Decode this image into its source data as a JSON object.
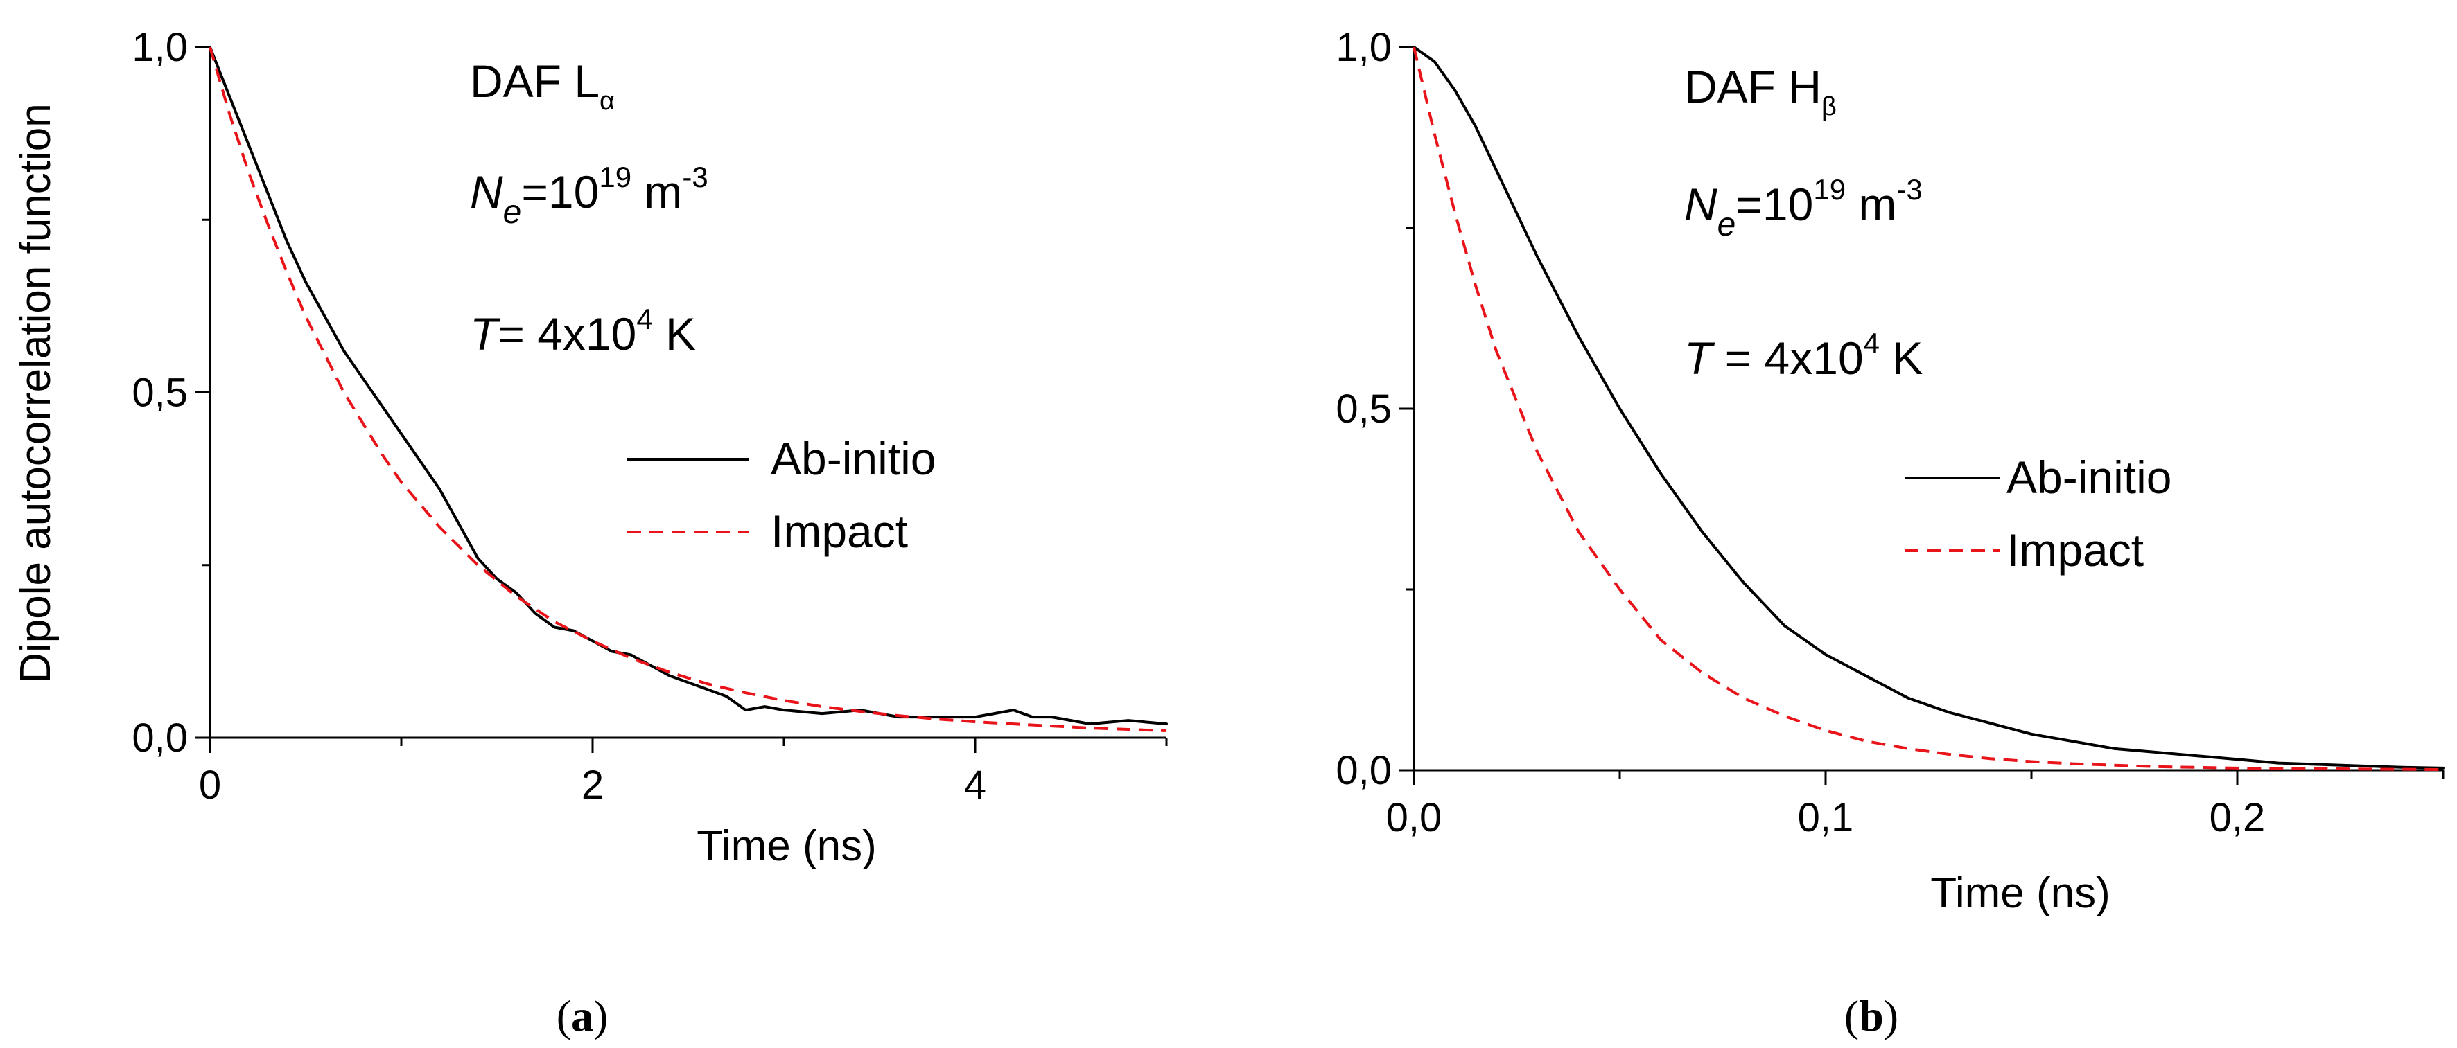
{
  "chart_data": [
    {
      "type": "line",
      "panel": "a",
      "caption_letter": "a",
      "ylabel": "Dipole autocorrelation function",
      "xlabel": "Time (ns)",
      "xlim": [
        0,
        5
      ],
      "ylim": [
        0,
        1
      ],
      "x_ticks": [
        {
          "value": 0,
          "label": "0"
        },
        {
          "value": 2,
          "label": "2"
        },
        {
          "value": 4,
          "label": "4"
        }
      ],
      "x_minor_ticks": [
        1,
        3,
        5
      ],
      "y_ticks": [
        {
          "value": 0,
          "label": "0,0"
        },
        {
          "value": 0.5,
          "label": "0,5"
        },
        {
          "value": 1,
          "label": "1,0"
        }
      ],
      "y_minor_ticks": [
        0.25,
        0.75
      ],
      "annotations": {
        "title_main": "DAF L",
        "title_sub": "α",
        "density_var": "N",
        "density_sub": "e",
        "density_eq": "=10",
        "density_exp": "19",
        "density_unit": " m",
        "density_unit_exp": "-3",
        "temp_var": "T",
        "temp_eq": "= 4x10",
        "temp_exp": "4",
        "temp_unit": " K"
      },
      "legend_position": "center-right",
      "series": [
        {
          "name": "Ab-initio",
          "color": "#000000",
          "style": "solid",
          "x": [
            0,
            0.1,
            0.2,
            0.3,
            0.4,
            0.5,
            0.6,
            0.7,
            0.8,
            0.9,
            1.0,
            1.1,
            1.2,
            1.3,
            1.4,
            1.5,
            1.6,
            1.7,
            1.8,
            1.9,
            2.0,
            2.1,
            2.2,
            2.3,
            2.4,
            2.5,
            2.6,
            2.7,
            2.8,
            2.9,
            3.0,
            3.2,
            3.4,
            3.6,
            3.8,
            4.0,
            4.2,
            4.3,
            4.4,
            4.6,
            4.8,
            5.0
          ],
          "y": [
            1.0,
            0.93,
            0.86,
            0.79,
            0.72,
            0.66,
            0.61,
            0.56,
            0.52,
            0.48,
            0.44,
            0.4,
            0.36,
            0.31,
            0.26,
            0.23,
            0.21,
            0.18,
            0.16,
            0.155,
            0.14,
            0.125,
            0.12,
            0.105,
            0.09,
            0.08,
            0.07,
            0.06,
            0.04,
            0.045,
            0.04,
            0.035,
            0.04,
            0.03,
            0.03,
            0.03,
            0.04,
            0.03,
            0.03,
            0.02,
            0.025,
            0.02
          ]
        },
        {
          "name": "Impact",
          "color": "#e8141a",
          "style": "dashed",
          "x": [
            0,
            0.1,
            0.2,
            0.3,
            0.4,
            0.5,
            0.6,
            0.7,
            0.8,
            0.9,
            1.0,
            1.2,
            1.4,
            1.6,
            1.8,
            2.0,
            2.2,
            2.4,
            2.6,
            2.8,
            3.0,
            3.2,
            3.4,
            3.6,
            3.8,
            4.0,
            4.2,
            4.4,
            4.6,
            4.8,
            5.0
          ],
          "y": [
            1.0,
            0.905,
            0.82,
            0.745,
            0.675,
            0.61,
            0.555,
            0.5,
            0.455,
            0.41,
            0.37,
            0.305,
            0.25,
            0.205,
            0.168,
            0.14,
            0.115,
            0.095,
            0.078,
            0.065,
            0.054,
            0.045,
            0.038,
            0.032,
            0.027,
            0.023,
            0.02,
            0.017,
            0.014,
            0.012,
            0.01
          ]
        }
      ]
    },
    {
      "type": "line",
      "panel": "b",
      "caption_letter": "b",
      "ylabel": "",
      "xlabel": "Time (ns)",
      "xlim": [
        0,
        0.25
      ],
      "ylim": [
        0,
        1
      ],
      "x_ticks": [
        {
          "value": 0,
          "label": "0,0"
        },
        {
          "value": 0.1,
          "label": "0,1"
        },
        {
          "value": 0.2,
          "label": "0,2"
        }
      ],
      "x_minor_ticks": [
        0.05,
        0.15,
        0.25
      ],
      "y_ticks": [
        {
          "value": 0,
          "label": "0,0"
        },
        {
          "value": 0.5,
          "label": "0,5"
        },
        {
          "value": 1,
          "label": "1,0"
        }
      ],
      "y_minor_ticks": [
        0.25,
        0.75
      ],
      "annotations": {
        "title_main": "DAF H",
        "title_sub": "β",
        "density_var": "N",
        "density_sub": "e",
        "density_eq": "=10",
        "density_exp": "19",
        "density_unit": " m",
        "density_unit_exp": "-3",
        "temp_var": "T",
        "temp_eq": " = 4x10",
        "temp_exp": "4",
        "temp_unit": " K"
      },
      "legend_position": "center-right",
      "series": [
        {
          "name": "Ab-initio",
          "color": "#000000",
          "style": "solid",
          "x": [
            0,
            0.005,
            0.01,
            0.015,
            0.02,
            0.03,
            0.04,
            0.05,
            0.06,
            0.07,
            0.08,
            0.09,
            0.1,
            0.11,
            0.12,
            0.13,
            0.14,
            0.15,
            0.16,
            0.17,
            0.18,
            0.19,
            0.2,
            0.21,
            0.22,
            0.23,
            0.24,
            0.25
          ],
          "y": [
            1.0,
            0.98,
            0.94,
            0.89,
            0.83,
            0.71,
            0.6,
            0.5,
            0.41,
            0.33,
            0.26,
            0.2,
            0.16,
            0.13,
            0.1,
            0.08,
            0.065,
            0.05,
            0.04,
            0.03,
            0.025,
            0.02,
            0.015,
            0.01,
            0.008,
            0.006,
            0.004,
            0.003
          ]
        },
        {
          "name": "Impact",
          "color": "#e8141a",
          "style": "dashed",
          "x": [
            0,
            0.005,
            0.01,
            0.015,
            0.02,
            0.025,
            0.03,
            0.04,
            0.05,
            0.06,
            0.07,
            0.08,
            0.09,
            0.1,
            0.11,
            0.12,
            0.13,
            0.14,
            0.15,
            0.16,
            0.18,
            0.2,
            0.22,
            0.25
          ],
          "y": [
            1.0,
            0.88,
            0.77,
            0.67,
            0.58,
            0.51,
            0.44,
            0.33,
            0.25,
            0.18,
            0.135,
            0.1,
            0.075,
            0.055,
            0.04,
            0.03,
            0.022,
            0.016,
            0.012,
            0.009,
            0.005,
            0.003,
            0.002,
            0.001
          ]
        }
      ]
    }
  ]
}
